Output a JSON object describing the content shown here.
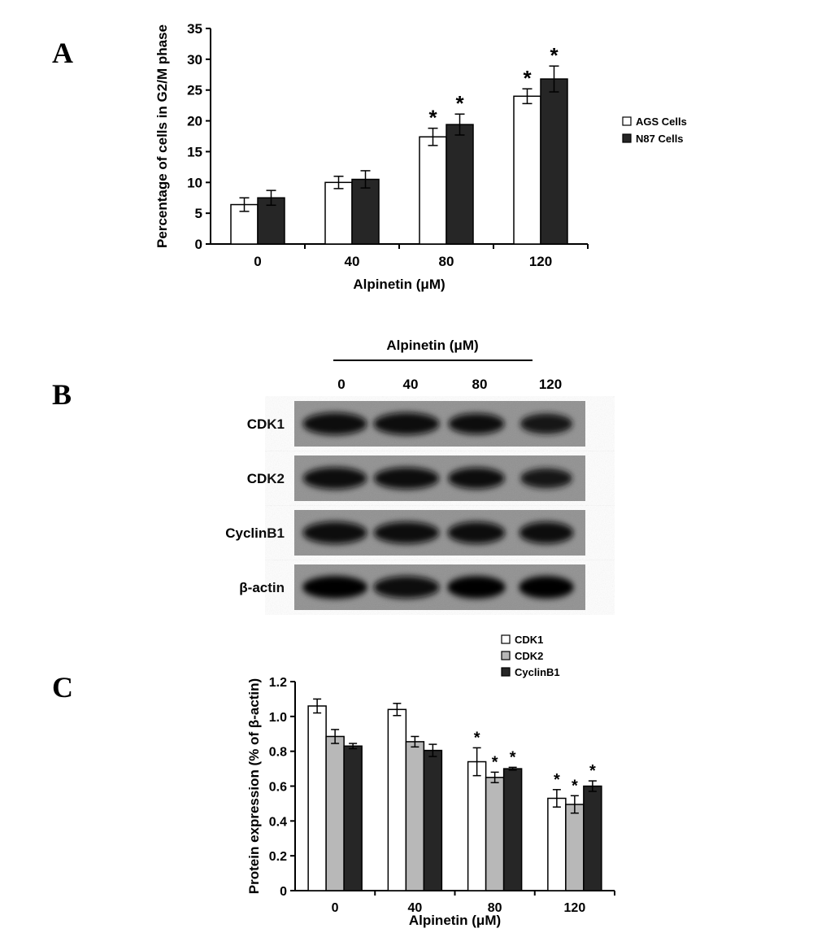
{
  "panels": {
    "a": "A",
    "b": "B",
    "c": "C"
  },
  "chart_data": [
    {
      "type": "bar",
      "categories": [
        "0",
        "40",
        "80",
        "120"
      ],
      "series": [
        {
          "name": "AGS Cells",
          "values": [
            6.4,
            10.0,
            17.4,
            24.0
          ],
          "errors": [
            1.1,
            1.0,
            1.4,
            1.2
          ],
          "color": "#ffffff"
        },
        {
          "name": "N87 Cells",
          "values": [
            7.5,
            10.5,
            19.4,
            26.8
          ],
          "errors": [
            1.2,
            1.4,
            1.7,
            2.1
          ],
          "color": "#262626"
        }
      ],
      "significant": [
        false,
        false,
        true,
        true
      ],
      "xlabel": "Alpinetin (μM)",
      "ylabel": "Percentage of cells in G2/M phase",
      "ylim": [
        0,
        35
      ],
      "yticks": [
        "0",
        "5",
        "10",
        "15",
        "20",
        "25",
        "30",
        "35"
      ],
      "legend_position": "right"
    },
    {
      "type": "image",
      "header": "Alpinetin (μM)",
      "lanes": [
        "0",
        "40",
        "80",
        "120"
      ],
      "rows": [
        {
          "label": "CDK1",
          "intensity": [
            0.95,
            0.95,
            0.8,
            0.75
          ]
        },
        {
          "label": "CDK2",
          "intensity": [
            0.92,
            0.9,
            0.85,
            0.7
          ]
        },
        {
          "label": "CyclinB1",
          "intensity": [
            0.95,
            0.92,
            0.92,
            0.92
          ]
        },
        {
          "label": "β-actin",
          "intensity": [
            1.0,
            0.95,
            0.98,
            0.98
          ]
        }
      ]
    },
    {
      "type": "bar",
      "categories": [
        "0",
        "40",
        "80",
        "120"
      ],
      "series": [
        {
          "name": "CDK1",
          "values": [
            1.06,
            1.04,
            0.74,
            0.53
          ],
          "errors": [
            0.04,
            0.035,
            0.08,
            0.05
          ],
          "color": "#ffffff"
        },
        {
          "name": "CDK2",
          "values": [
            0.885,
            0.855,
            0.65,
            0.495
          ],
          "errors": [
            0.04,
            0.03,
            0.03,
            0.05
          ],
          "color": "#b8b8b8"
        },
        {
          "name": "CyclinB1",
          "values": [
            0.83,
            0.805,
            0.7,
            0.6
          ],
          "errors": [
            0.015,
            0.035,
            0.008,
            0.03
          ],
          "color": "#262626"
        }
      ],
      "significant": [
        false,
        false,
        true,
        true
      ],
      "xlabel": "Alpinetin (μM)",
      "ylabel": "Protein expression (% of β-actin)",
      "ylim": [
        0,
        1.2
      ],
      "yticks": [
        "0",
        "0.2",
        "0.4",
        "0.6",
        "0.8",
        "1.0",
        "1.2"
      ],
      "legend_position": "top"
    }
  ]
}
